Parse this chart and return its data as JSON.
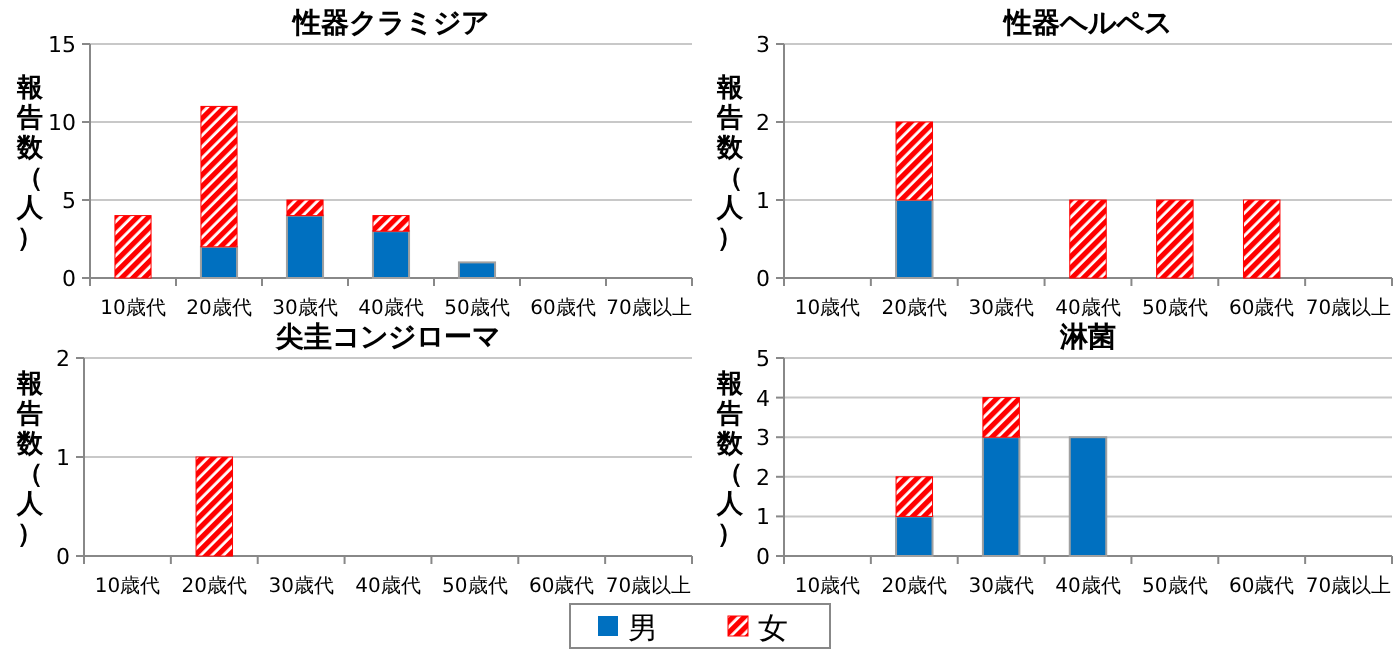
{
  "chart_data": [
    {
      "type": "bar",
      "title": "性器クラミジア",
      "ylabel": "報告数（人）",
      "categories": [
        "10歳代",
        "20歳代",
        "30歳代",
        "40歳代",
        "50歳代",
        "60歳代",
        "70歳以上"
      ],
      "stacked": true,
      "ylim": [
        0,
        15
      ],
      "yticks": [
        0,
        5,
        10,
        15
      ],
      "grid": "y",
      "legend": "bottom",
      "series": [
        {
          "name": "男",
          "color": "#0070c0",
          "values": [
            0,
            2,
            4,
            3,
            1,
            0,
            0
          ]
        },
        {
          "name": "女",
          "color": "#ff0000",
          "values": [
            4,
            9,
            1,
            1,
            0,
            0,
            0
          ]
        }
      ]
    },
    {
      "type": "bar",
      "title": "性器ヘルペス",
      "ylabel": "報告数（人）",
      "categories": [
        "10歳代",
        "20歳代",
        "30歳代",
        "40歳代",
        "50歳代",
        "60歳代",
        "70歳以上"
      ],
      "stacked": true,
      "ylim": [
        0,
        3
      ],
      "yticks": [
        0,
        1,
        2,
        3
      ],
      "grid": "y",
      "legend": "bottom",
      "series": [
        {
          "name": "男",
          "color": "#0070c0",
          "values": [
            0,
            1,
            0,
            0,
            0,
            0,
            0
          ]
        },
        {
          "name": "女",
          "color": "#ff0000",
          "values": [
            0,
            1,
            0,
            1,
            1,
            1,
            0
          ]
        }
      ]
    },
    {
      "type": "bar",
      "title": "尖圭コンジローマ",
      "ylabel": "報告数（人）",
      "categories": [
        "10歳代",
        "20歳代",
        "30歳代",
        "40歳代",
        "50歳代",
        "60歳代",
        "70歳以上"
      ],
      "stacked": true,
      "ylim": [
        0,
        2
      ],
      "yticks": [
        0,
        1,
        2
      ],
      "grid": "y",
      "legend": "bottom",
      "series": [
        {
          "name": "男",
          "color": "#0070c0",
          "values": [
            0,
            0,
            0,
            0,
            0,
            0,
            0
          ]
        },
        {
          "name": "女",
          "color": "#ff0000",
          "values": [
            0,
            1,
            0,
            0,
            0,
            0,
            0
          ]
        }
      ]
    },
    {
      "type": "bar",
      "title": "淋菌",
      "ylabel": "報告数（人）",
      "categories": [
        "10歳代",
        "20歳代",
        "30歳代",
        "40歳代",
        "50歳代",
        "60歳代",
        "70歳以上"
      ],
      "stacked": true,
      "ylim": [
        0,
        5
      ],
      "yticks": [
        0,
        1,
        2,
        3,
        4,
        5
      ],
      "grid": "y",
      "legend": "bottom",
      "series": [
        {
          "name": "男",
          "color": "#0070c0",
          "values": [
            0,
            1,
            3,
            3,
            0,
            0,
            0
          ]
        },
        {
          "name": "女",
          "color": "#ff0000",
          "values": [
            0,
            1,
            1,
            0,
            0,
            0,
            0
          ]
        }
      ]
    }
  ]
}
